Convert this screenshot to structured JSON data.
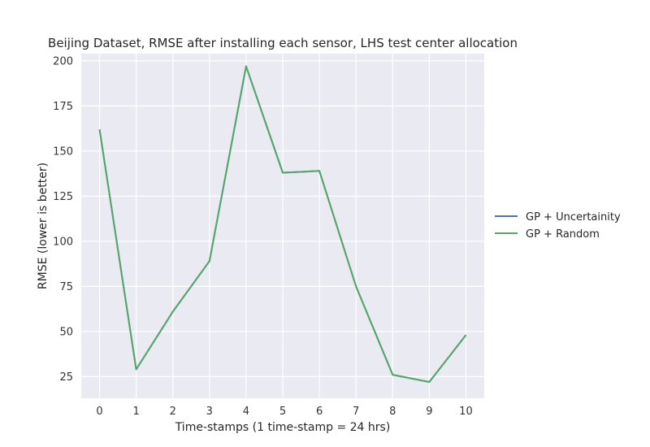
{
  "chart_data": {
    "type": "line",
    "title": "Beijing Dataset, RMSE after installing each sensor, LHS test center allocation",
    "xlabel": "Time-stamps (1 time-stamp = 24 hrs)",
    "ylabel": "RMSE (lower is better)",
    "x": [
      0,
      1,
      2,
      3,
      4,
      5,
      6,
      7,
      8,
      9,
      10
    ],
    "xlim": [
      -0.5,
      10.5
    ],
    "ylim": [
      13,
      204
    ],
    "xticks": [
      "0",
      "1",
      "2",
      "3",
      "4",
      "5",
      "6",
      "7",
      "8",
      "9",
      "10"
    ],
    "yticks": [
      "25",
      "50",
      "75",
      "100",
      "125",
      "150",
      "175",
      "200"
    ],
    "grid": true,
    "legend_position": "right",
    "series": [
      {
        "name": "GP + Uncertainity",
        "color": "#4c72b0",
        "values": [
          162,
          29,
          61,
          89,
          197,
          138,
          139,
          75,
          26,
          22,
          48
        ]
      },
      {
        "name": "GP + Random",
        "color": "#55a868",
        "values": [
          162,
          29,
          61,
          89,
          197,
          138,
          139,
          75,
          26,
          22,
          48
        ]
      }
    ],
    "colors": {
      "plot_background": "#eaeaf2",
      "grid": "#ffffff"
    }
  }
}
